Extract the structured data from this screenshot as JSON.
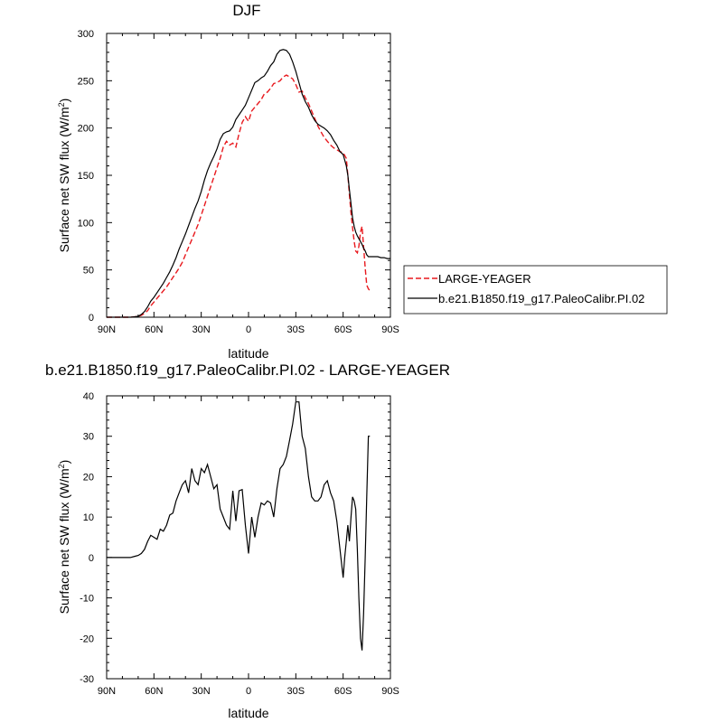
{
  "chart_data": [
    {
      "type": "line",
      "title": "DJF",
      "xlabel": "latitude",
      "ylabel": "Surface net SW flux (W/m",
      "ylabel_sup": "2",
      "ylabel_close": ")",
      "xlim": [
        90,
        -90
      ],
      "ylim": [
        0,
        300
      ],
      "x_ticks": [
        90,
        60,
        30,
        0,
        -30,
        -60,
        -90
      ],
      "x_tick_labels": [
        "90N",
        "60N",
        "30N",
        "0",
        "30S",
        "60S",
        "90S"
      ],
      "y_ticks": [
        0,
        50,
        100,
        150,
        200,
        250,
        300
      ],
      "y_tick_labels": [
        "0",
        "50",
        "100",
        "150",
        "200",
        "250",
        "300"
      ],
      "grid": false,
      "legend_position": "right",
      "series": [
        {
          "name": "LARGE-YEAGER",
          "color": "#e8191e",
          "dash": "dashed",
          "x": [
            90,
            85,
            80,
            75,
            72,
            70,
            68,
            66,
            64,
            62,
            60,
            58,
            56,
            54,
            52,
            50,
            48,
            46,
            44,
            42,
            40,
            38,
            36,
            34,
            32,
            30,
            28,
            26,
            24,
            22,
            20,
            18,
            16,
            14,
            12,
            10,
            8,
            6,
            4,
            2,
            0,
            -2,
            -4,
            -6,
            -8,
            -10,
            -12,
            -14,
            -16,
            -18,
            -20,
            -22,
            -24,
            -26,
            -28,
            -30,
            -32,
            -34,
            -36,
            -38,
            -40,
            -42,
            -44,
            -46,
            -48,
            -50,
            -52,
            -54,
            -56,
            -58,
            -60,
            -62,
            -63,
            -64,
            -65,
            -66,
            -67,
            -68,
            -69,
            -70,
            -71,
            -72,
            -73,
            -74,
            -75,
            -76,
            -77
          ],
          "y": [
            0,
            0,
            0,
            0,
            0.5,
            1,
            2,
            4,
            7,
            12,
            16,
            20,
            24,
            28,
            32,
            37,
            42,
            47,
            52,
            58,
            66,
            74,
            82,
            90,
            98,
            108,
            118,
            128,
            138,
            148,
            158,
            168,
            180,
            186,
            182,
            184,
            180,
            194,
            206,
            212,
            207,
            218,
            222,
            226,
            230,
            236,
            238,
            242,
            247,
            248,
            250,
            254,
            256,
            254,
            252,
            246,
            238,
            239,
            232,
            226,
            218,
            210,
            202,
            196,
            190,
            186,
            182,
            179,
            177,
            175,
            174,
            168,
            150,
            130,
            110,
            95,
            80,
            70,
            68,
            75,
            90,
            96,
            75,
            52,
            34,
            30,
            28
          ]
        },
        {
          "name": "b.e21.B1850.f19_g17.PaleoCalibr.PI.02",
          "color": "#000000",
          "dash": "solid",
          "x": [
            90,
            85,
            80,
            75,
            72,
            70,
            68,
            66,
            64,
            62,
            60,
            58,
            56,
            54,
            52,
            50,
            48,
            46,
            44,
            42,
            40,
            38,
            36,
            34,
            32,
            30,
            28,
            26,
            24,
            22,
            20,
            18,
            16,
            14,
            12,
            10,
            8,
            6,
            4,
            2,
            0,
            -2,
            -4,
            -6,
            -8,
            -10,
            -12,
            -14,
            -16,
            -18,
            -20,
            -22,
            -24,
            -26,
            -28,
            -30,
            -32,
            -34,
            -36,
            -38,
            -40,
            -42,
            -44,
            -46,
            -48,
            -50,
            -52,
            -54,
            -56,
            -58,
            -60,
            -62,
            -63,
            -64,
            -65,
            -66,
            -67,
            -68,
            -69,
            -70,
            -71,
            -72,
            -73,
            -74,
            -75,
            -76,
            -78,
            -80,
            -82,
            -84,
            -86,
            -88,
            -90
          ],
          "y": [
            0,
            0,
            0,
            0,
            0.5,
            1,
            3,
            6,
            11,
            17,
            21,
            26,
            31,
            36,
            42,
            48,
            55,
            63,
            72,
            80,
            88,
            97,
            106,
            115,
            123,
            133,
            145,
            155,
            163,
            170,
            178,
            188,
            194,
            196,
            197,
            201,
            209,
            214,
            219,
            224,
            232,
            240,
            248,
            250,
            253,
            255,
            260,
            266,
            270,
            278,
            282,
            283,
            282,
            278,
            270,
            260,
            248,
            236,
            228,
            222,
            214,
            208,
            204,
            202,
            200,
            197,
            193,
            187,
            182,
            175,
            172,
            160,
            150,
            135,
            120,
            105,
            96,
            90,
            86,
            83,
            80,
            77,
            73,
            70,
            66,
            64,
            64,
            64,
            64,
            63,
            63,
            62,
            62
          ]
        }
      ]
    },
    {
      "type": "line",
      "title": "b.e21.B1850.f19_g17.PaleoCalibr.PI.02 - LARGE-YEAGER",
      "xlabel": "latitude",
      "ylabel": "Surface net SW flux (W/m",
      "ylabel_sup": "2",
      "ylabel_close": ")",
      "xlim": [
        90,
        -90
      ],
      "ylim": [
        -30,
        40
      ],
      "x_ticks": [
        90,
        60,
        30,
        0,
        -30,
        -60,
        -90
      ],
      "x_tick_labels": [
        "90N",
        "60N",
        "30N",
        "0",
        "30S",
        "60S",
        "90S"
      ],
      "y_ticks": [
        -30,
        -20,
        -10,
        0,
        10,
        20,
        30,
        40
      ],
      "y_tick_labels": [
        "-30",
        "-20",
        "-10",
        "0",
        "10",
        "20",
        "30",
        "40"
      ],
      "grid": false,
      "series": [
        {
          "color": "#000000",
          "dash": "solid",
          "x": [
            90,
            85,
            80,
            75,
            72,
            70,
            68,
            66,
            64,
            62,
            60,
            58,
            56,
            54,
            52,
            50,
            48,
            46,
            44,
            42,
            40,
            38,
            36,
            34,
            32,
            30,
            28,
            26,
            24,
            22,
            20,
            18,
            16,
            14,
            12,
            10,
            8,
            6,
            4,
            2,
            0,
            -2,
            -4,
            -6,
            -8,
            -10,
            -12,
            -14,
            -16,
            -18,
            -20,
            -22,
            -24,
            -26,
            -28,
            -30,
            -32,
            -34,
            -36,
            -38,
            -40,
            -42,
            -44,
            -46,
            -48,
            -50,
            -52,
            -54,
            -56,
            -58,
            -60,
            -61,
            -62,
            -63,
            -64,
            -65,
            -66,
            -67,
            -68,
            -69,
            -70,
            -71,
            -72,
            -73,
            -74,
            -75,
            -76,
            -77
          ],
          "y": [
            0,
            0,
            0,
            0,
            0.3,
            0.5,
            1,
            2,
            4,
            5.5,
            5,
            4.5,
            7,
            6.5,
            8,
            10.5,
            11,
            14,
            16,
            18,
            19,
            16,
            22,
            19,
            18,
            22,
            21,
            23,
            20,
            17,
            18,
            12,
            10,
            8,
            7,
            16.5,
            9,
            16.5,
            16.8,
            8,
            1,
            10,
            5,
            10,
            13.5,
            13,
            14,
            13.5,
            10,
            17,
            22,
            23,
            25,
            29,
            33,
            38.5,
            38.5,
            30,
            27,
            20,
            15,
            14,
            14,
            15,
            18,
            19,
            16,
            14,
            9,
            2,
            -5,
            0,
            4,
            8,
            4,
            10,
            15,
            14,
            12,
            2,
            -10,
            -20,
            -23,
            -14,
            0,
            15,
            30,
            30
          ]
        }
      ]
    }
  ]
}
